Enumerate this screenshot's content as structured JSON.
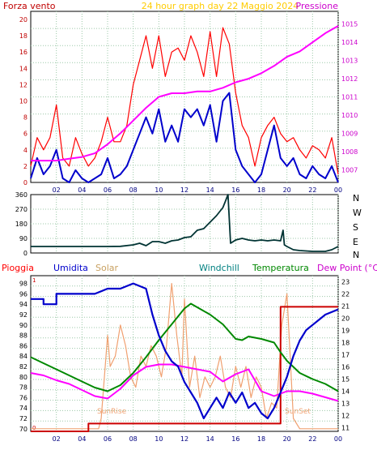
{
  "chart_data": [
    {
      "type": "line",
      "title": "24 hour graph day   22 Maggio 2024",
      "left_axis_label": "Forza vento",
      "right_axis_label": "Pressione",
      "x_ticks": [
        "02",
        "04",
        "06",
        "08",
        "10",
        "12",
        "14",
        "16",
        "18",
        "20",
        "22",
        "00"
      ],
      "y_ticks": [
        "0",
        "2",
        "4",
        "6",
        "8",
        "10",
        "12",
        "14",
        "16",
        "18",
        "20"
      ],
      "ylim": [
        0,
        21
      ],
      "y2_ticks": [
        "1007",
        "1008",
        "1009",
        "1010",
        "1011",
        "1012",
        "1013",
        "1014",
        "1015"
      ],
      "y2lim": [
        1006.3,
        1015.7
      ],
      "grid": true,
      "colors": {
        "gust": "#ff0000",
        "wind": "#0000cc",
        "pressure": "#ff00ff",
        "left_axis": "#c00000",
        "right_axis": "#cc00cc",
        "title": "#ffcc00"
      },
      "series": [
        {
          "key": "gust",
          "x": [
            0,
            0.5,
            1,
            1.5,
            2,
            2.5,
            3,
            3.5,
            4,
            4.5,
            5,
            5.5,
            6,
            6.5,
            7,
            7.5,
            8,
            8.5,
            9,
            9.5,
            10,
            10.5,
            11,
            11.5,
            12,
            12.5,
            13,
            13.5,
            14,
            14.5,
            15,
            15.5,
            16,
            16.5,
            17,
            17.5,
            18,
            18.5,
            19,
            19.5,
            20,
            20.5,
            21,
            21.5,
            22,
            22.5,
            23,
            23.5,
            24
          ],
          "values": [
            2,
            5.5,
            4,
            5.5,
            9.5,
            3,
            2,
            5.5,
            3.5,
            2,
            3,
            5,
            8,
            5,
            5,
            7,
            12,
            15,
            18,
            14,
            18,
            13,
            16,
            16.5,
            15,
            18,
            16,
            13,
            18.5,
            13,
            19,
            17,
            11,
            7,
            5.5,
            2,
            5.5,
            7,
            8,
            6,
            5,
            5.5,
            4,
            3,
            4.5,
            4,
            3,
            5.5,
            1
          ]
        },
        {
          "key": "wind",
          "x": [
            0,
            0.5,
            1,
            1.5,
            2,
            2.5,
            3,
            3.5,
            4,
            4.5,
            5,
            5.5,
            6,
            6.5,
            7,
            7.5,
            8,
            8.5,
            9,
            9.5,
            10,
            10.5,
            11,
            11.5,
            12,
            12.5,
            13,
            13.5,
            14,
            14.5,
            15,
            15.5,
            16,
            16.5,
            17,
            17.5,
            18,
            18.5,
            19,
            19.5,
            20,
            20.5,
            21,
            21.5,
            22,
            22.5,
            23,
            23.5,
            24
          ],
          "values": [
            0.5,
            3,
            1,
            2,
            4,
            0.5,
            0,
            1.5,
            0.5,
            0,
            0.5,
            1,
            3,
            0.5,
            1,
            2,
            4,
            6,
            8,
            6,
            9,
            5,
            7,
            5,
            9,
            8,
            9,
            7,
            9.5,
            5,
            10,
            11,
            4,
            2,
            1,
            0,
            1,
            4,
            7,
            3,
            2,
            3,
            1,
            0.5,
            2,
            1,
            0.5,
            2,
            0
          ]
        },
        {
          "key": "pressure",
          "x": [
            0,
            1,
            2,
            3,
            4,
            5,
            6,
            7,
            8,
            9,
            10,
            11,
            12,
            13,
            14,
            15,
            16,
            17,
            18,
            19,
            20,
            21,
            22,
            23,
            24
          ],
          "values": [
            1007.5,
            1007.5,
            1007.5,
            1007.6,
            1007.7,
            1007.9,
            1008.4,
            1009.0,
            1009.7,
            1010.4,
            1011.0,
            1011.2,
            1011.2,
            1011.3,
            1011.3,
            1011.5,
            1011.8,
            1012.0,
            1012.3,
            1012.7,
            1013.2,
            1013.5,
            1014.0,
            1014.5,
            1014.9
          ]
        }
      ]
    },
    {
      "type": "line",
      "direction_labels": [
        "N",
        "W",
        "S",
        "E",
        "N"
      ],
      "x_ticks": [],
      "y_ticks": [
        "0",
        "90",
        "180",
        "270",
        "360"
      ],
      "ylim": [
        0,
        360
      ],
      "grid": true,
      "colors": {
        "line": "#003333"
      },
      "series": [
        {
          "key": "direction",
          "x": [
            0,
            1,
            2,
            3,
            4,
            5,
            6,
            7,
            8,
            8.5,
            9,
            9.5,
            10,
            10.5,
            11,
            11.5,
            12,
            12.5,
            13,
            13.5,
            14,
            14.5,
            15,
            15.2,
            15.4,
            15.6,
            16,
            16.5,
            17,
            17.5,
            18,
            18.5,
            19,
            19.5,
            19.7,
            19.8,
            20,
            20.5,
            21,
            22,
            23,
            23.5,
            24
          ],
          "values": [
            40,
            40,
            40,
            40,
            40,
            40,
            40,
            41,
            50,
            60,
            45,
            70,
            70,
            60,
            75,
            80,
            95,
            100,
            140,
            150,
            190,
            230,
            280,
            320,
            360,
            60,
            80,
            90,
            80,
            75,
            80,
            75,
            80,
            75,
            140,
            50,
            40,
            20,
            15,
            10,
            10,
            20,
            40
          ]
        }
      ]
    },
    {
      "type": "line",
      "legend": [
        "Pioggia",
        "Umidita",
        "Solar",
        "Windchill",
        "Temperatura",
        "Dew Point (°C)"
      ],
      "annotations": [
        "SunRise",
        "SunSet"
      ],
      "x_ticks": [
        "02",
        "04",
        "06",
        "08",
        "10",
        "12",
        "14",
        "16",
        "18",
        "20",
        "22",
        "00"
      ],
      "y_ticks": [
        "70",
        "72",
        "74",
        "76",
        "78",
        "80",
        "82",
        "84",
        "86",
        "88",
        "90",
        "92",
        "94",
        "96",
        "98"
      ],
      "ylim": [
        69.5,
        99.5
      ],
      "y2_ticks": [
        "11",
        "12",
        "13",
        "14",
        "15",
        "16",
        "17",
        "18",
        "19",
        "20",
        "21",
        "22",
        "23"
      ],
      "y2lim": [
        10.7,
        23.5
      ],
      "grid": true,
      "colors": {
        "rain": "#cc0000",
        "humidity": "#0000cc",
        "solar": "#f0a070",
        "windchill": "#008080",
        "temperature": "#008800",
        "dewpoint": "#ff00ff",
        "left_axis": "#ff0000",
        "right_axis": "#cc00cc"
      },
      "rain_scale_ticks": [
        "0",
        "1"
      ],
      "series": [
        {
          "key": "rain",
          "x": [
            0,
            4.5,
            4.5,
            19.5,
            19.5,
            24
          ],
          "values": [
            0,
            0,
            0.05,
            0.05,
            0.8,
            0.8
          ]
        },
        {
          "key": "humidity",
          "x": [
            0,
            1,
            1,
            2,
            2,
            3,
            4,
            5,
            6,
            7,
            8,
            9,
            9.5,
            10,
            10.5,
            11,
            11.5,
            12,
            12.5,
            13,
            13.5,
            14,
            14.5,
            15,
            15.5,
            16,
            16.5,
            17,
            17.5,
            18,
            18.5,
            19,
            19.5,
            20,
            20.5,
            21,
            21.5,
            22,
            22.5,
            23,
            24
          ],
          "values": [
            95,
            95,
            94,
            94,
            96,
            96,
            96,
            96,
            97,
            97,
            98,
            97,
            92,
            88,
            85,
            83,
            82,
            79,
            77,
            75,
            72,
            74,
            76,
            74,
            77,
            75,
            77,
            74,
            75,
            73,
            72,
            74,
            77,
            80,
            84,
            87,
            89,
            90,
            91,
            92,
            93
          ]
        },
        {
          "key": "solar",
          "x": [
            0,
            5.3,
            5.5,
            6.0,
            6.2,
            6.6,
            7.0,
            7.4,
            7.8,
            8.2,
            8.6,
            9.0,
            9.4,
            9.8,
            10.2,
            10.6,
            11.0,
            11.4,
            11.8,
            12.0,
            12.4,
            12.8,
            13.2,
            13.6,
            14.0,
            14.4,
            14.8,
            15.2,
            15.6,
            16.0,
            16.4,
            16.8,
            17.2,
            17.6,
            18.0,
            18.4,
            18.8,
            19.2,
            19.6,
            20.0,
            20.5,
            21,
            24
          ],
          "values": [
            70,
            70,
            72,
            88,
            82,
            84,
            90,
            86,
            80,
            78,
            84,
            82,
            86,
            84,
            80,
            86,
            98,
            88,
            80,
            95,
            78,
            84,
            76,
            80,
            78,
            80,
            84,
            78,
            76,
            82,
            78,
            82,
            76,
            80,
            78,
            72,
            75,
            74,
            90,
            96,
            72,
            70,
            70
          ]
        },
        {
          "key": "temperature",
          "x": [
            0,
            1,
            2,
            3,
            4,
            5,
            6,
            7,
            8,
            9,
            10,
            11,
            12,
            12.5,
            13,
            14,
            15,
            16,
            16.5,
            17,
            18,
            19,
            19.5,
            20,
            21,
            22,
            23,
            24
          ],
          "values": [
            16.8,
            16.3,
            15.8,
            15.3,
            14.8,
            14.3,
            14,
            14.5,
            15.5,
            16.8,
            18.2,
            19.5,
            20.8,
            21.2,
            20.9,
            20.3,
            19.5,
            18.3,
            18.2,
            18.5,
            18.3,
            18,
            17.2,
            16.5,
            15.5,
            15,
            14.6,
            14
          ]
        },
        {
          "key": "dewpoint",
          "x": [
            0,
            1,
            2,
            3,
            4,
            5,
            6,
            7,
            8,
            9,
            10,
            11,
            12,
            13,
            14,
            15,
            16,
            17,
            18,
            19,
            20,
            21,
            22,
            23,
            24
          ],
          "values": [
            15.5,
            15.3,
            14.9,
            14.6,
            14.1,
            13.6,
            13.4,
            14.2,
            15.3,
            16,
            16.2,
            16.2,
            16.0,
            15.8,
            15.6,
            14.8,
            15.4,
            15.8,
            14.0,
            13.6,
            14.0,
            14.0,
            13.8,
            13.5,
            13.2
          ]
        }
      ]
    }
  ]
}
